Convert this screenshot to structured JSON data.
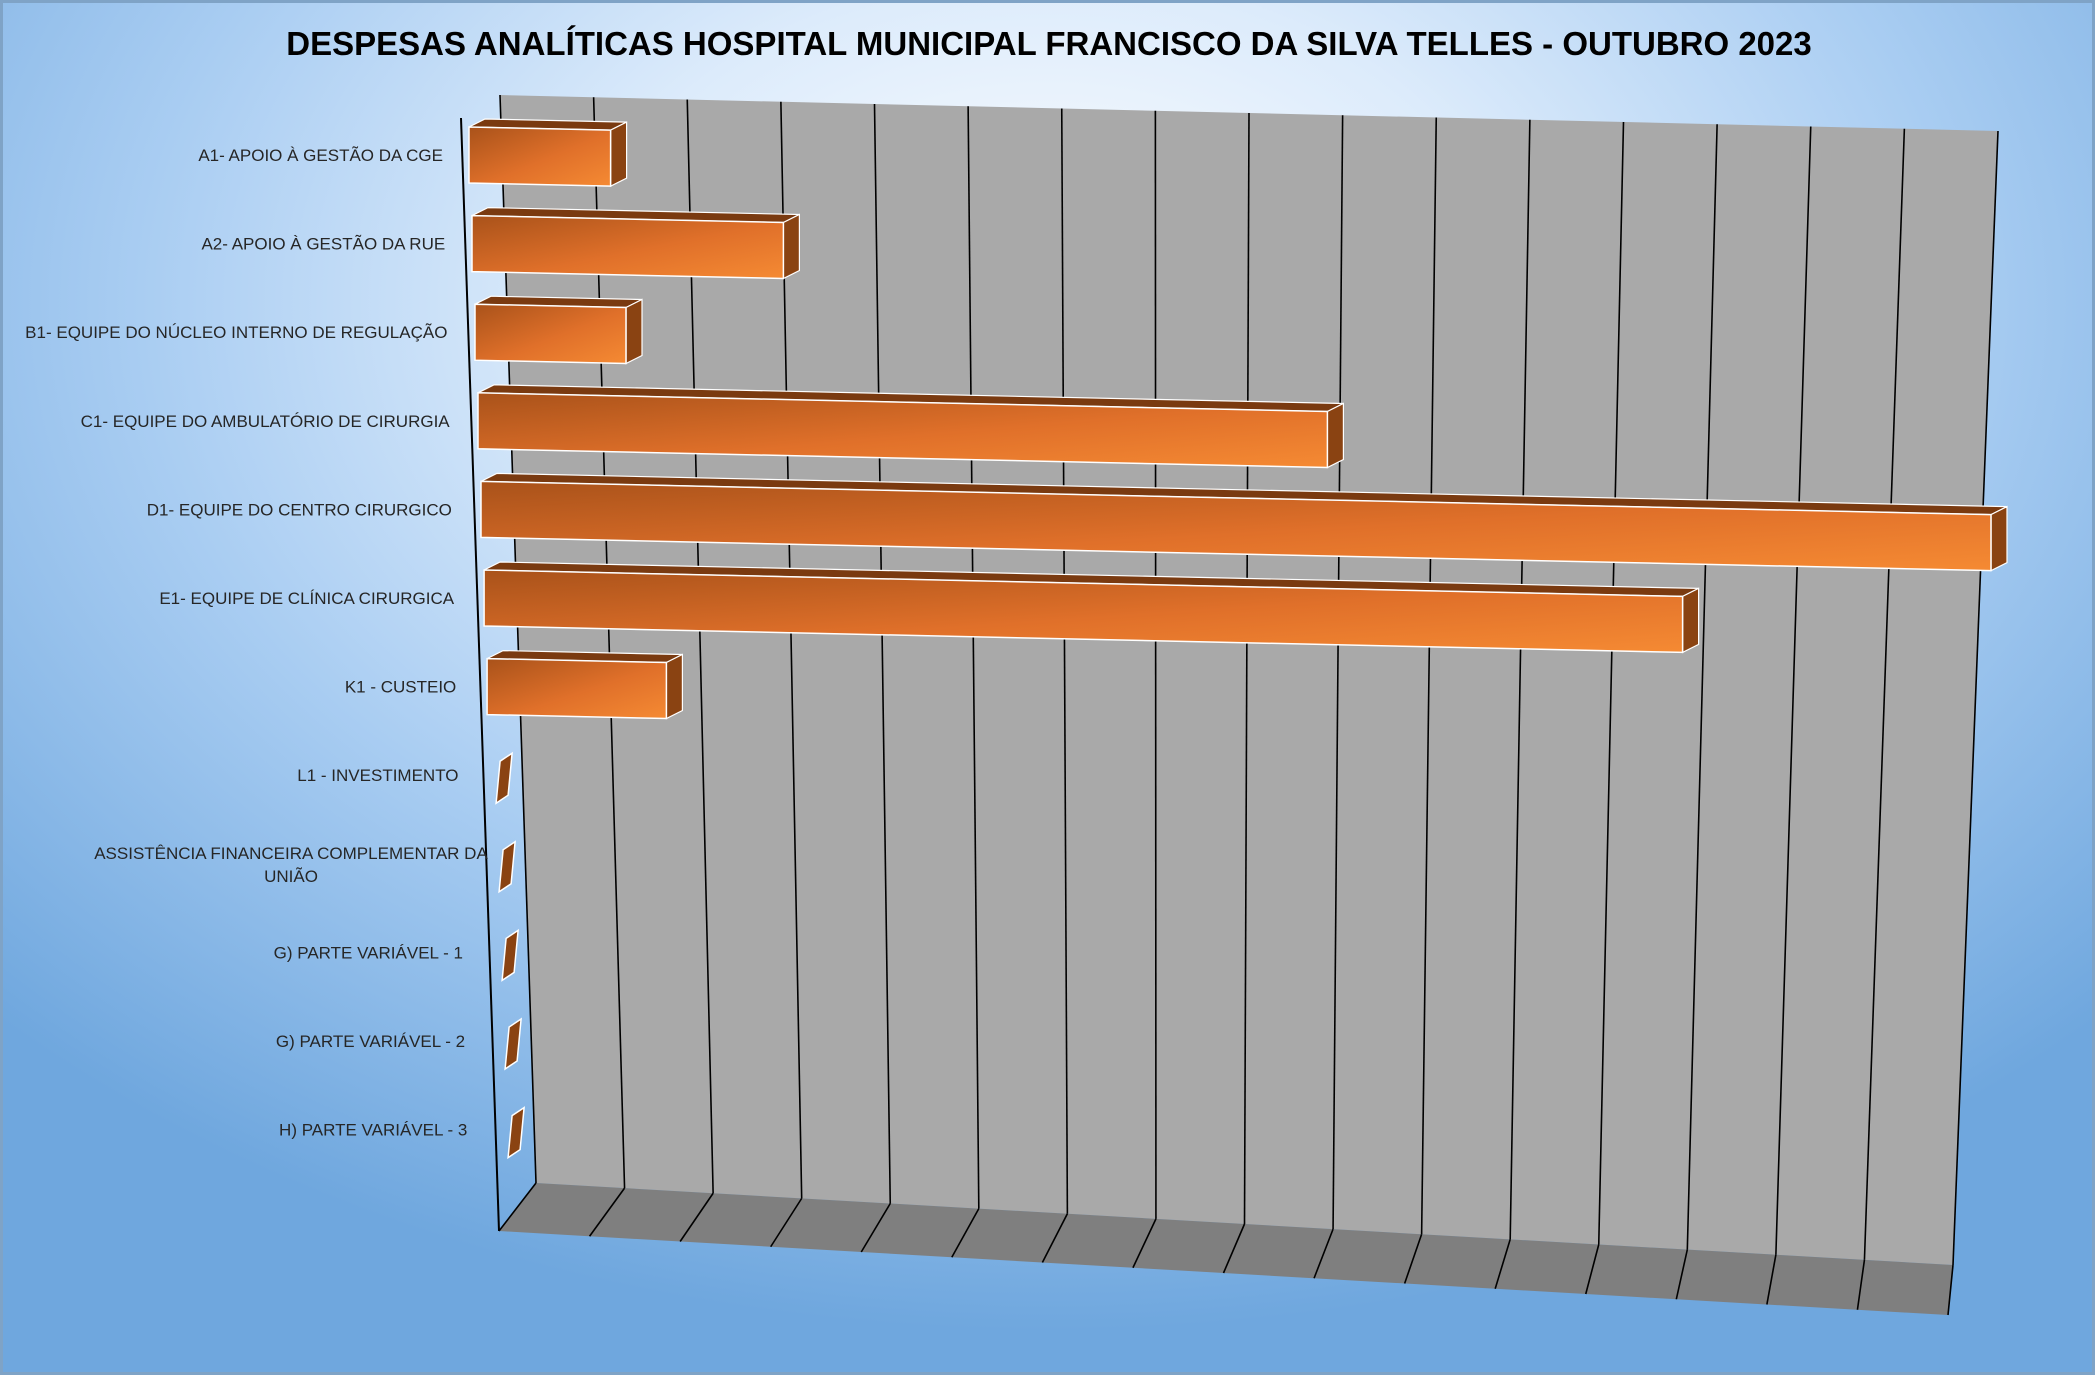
{
  "chart_data": {
    "type": "bar",
    "orientation": "horizontal",
    "style": "3d",
    "title": "DESPESAS ANALÍTICAS HOSPITAL MUNICIPAL FRANCISCO DA SILVA TELLES - OUTUBRO 2023",
    "xlabel": "",
    "ylabel": "",
    "grid": true,
    "legend": "none",
    "xlim": [
      0,
      16
    ],
    "categories": [
      [
        "A1- APOIO À GESTÃO DA CGE"
      ],
      [
        "A2- APOIO À GESTÃO DA RUE"
      ],
      [
        "B1- EQUIPE DO NÚCLEO INTERNO DE REGULAÇÃO"
      ],
      [
        "C1- EQUIPE DO AMBULATÓRIO DE CIRURGIA"
      ],
      [
        "D1- EQUIPE DO CENTRO CIRURGICO"
      ],
      [
        "E1- EQUIPE DE CLÍNICA CIRURGICA"
      ],
      [
        "K1 - CUSTEIO"
      ],
      [
        "L1 - INVESTIMENTO"
      ],
      [
        "ASSISTÊNCIA FINANCEIRA COMPLEMENTAR DA",
        "UNIÃO"
      ],
      [
        "G) PARTE VARIÁVEL - 1"
      ],
      [
        "G) PARTE VARIÁVEL - 2"
      ],
      [
        "H) PARTE VARIÁVEL - 3"
      ]
    ],
    "values": [
      1.5,
      3.3,
      1.6,
      9.0,
      16.0,
      12.7,
      1.9,
      0,
      0,
      0,
      0,
      0
    ],
    "colors": {
      "bar_front": "#f07d2a",
      "bar_front_dark": "#a9521a",
      "bar_top": "#7a3a10",
      "bar_side": "#8a4312",
      "back_wall": "#a9a9a9",
      "floor": "#7f7f7f",
      "grid_line": "#000000"
    }
  }
}
